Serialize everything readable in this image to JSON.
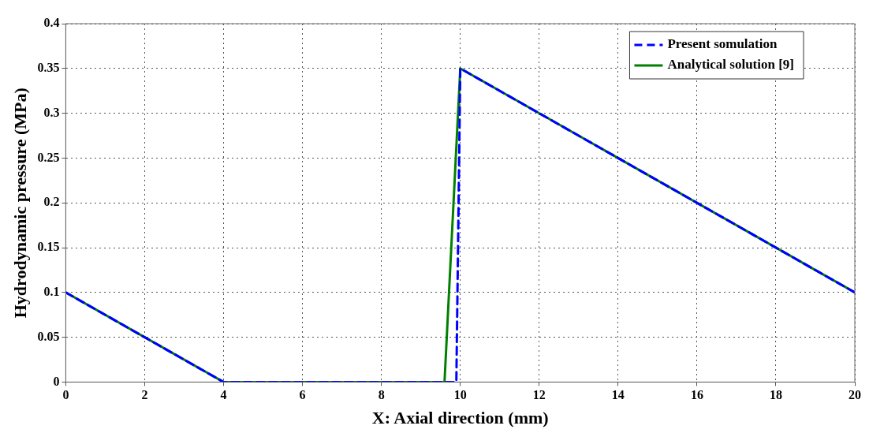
{
  "chart_data": {
    "type": "line",
    "xlabel": "X: Axial direction (mm)",
    "ylabel": "Hydrodynamic pressure (MPa)",
    "xlim": [
      0,
      20
    ],
    "xticks": [
      0,
      2,
      4,
      6,
      8,
      10,
      12,
      14,
      16,
      18,
      20
    ],
    "ylim": [
      0,
      0.4
    ],
    "yticks": [
      0,
      0.05,
      0.1,
      0.15,
      0.2,
      0.25,
      0.3,
      0.35,
      0.4
    ],
    "grid": true,
    "legend": "top right",
    "marker": "none",
    "series": [
      {
        "name": "Present somulation",
        "color": "#0000ff",
        "line_style": "dashed",
        "x": [
          0,
          4,
          9.9,
          10,
          20
        ],
        "values": [
          0.1,
          0,
          0,
          0.35,
          0.1
        ]
      },
      {
        "name": "Analytical solution [9]",
        "color": "#008000",
        "line_style": "solid",
        "x": [
          0,
          4,
          9.6,
          10,
          20
        ],
        "values": [
          0.1,
          0,
          0,
          0.35,
          0.1
        ]
      }
    ]
  }
}
